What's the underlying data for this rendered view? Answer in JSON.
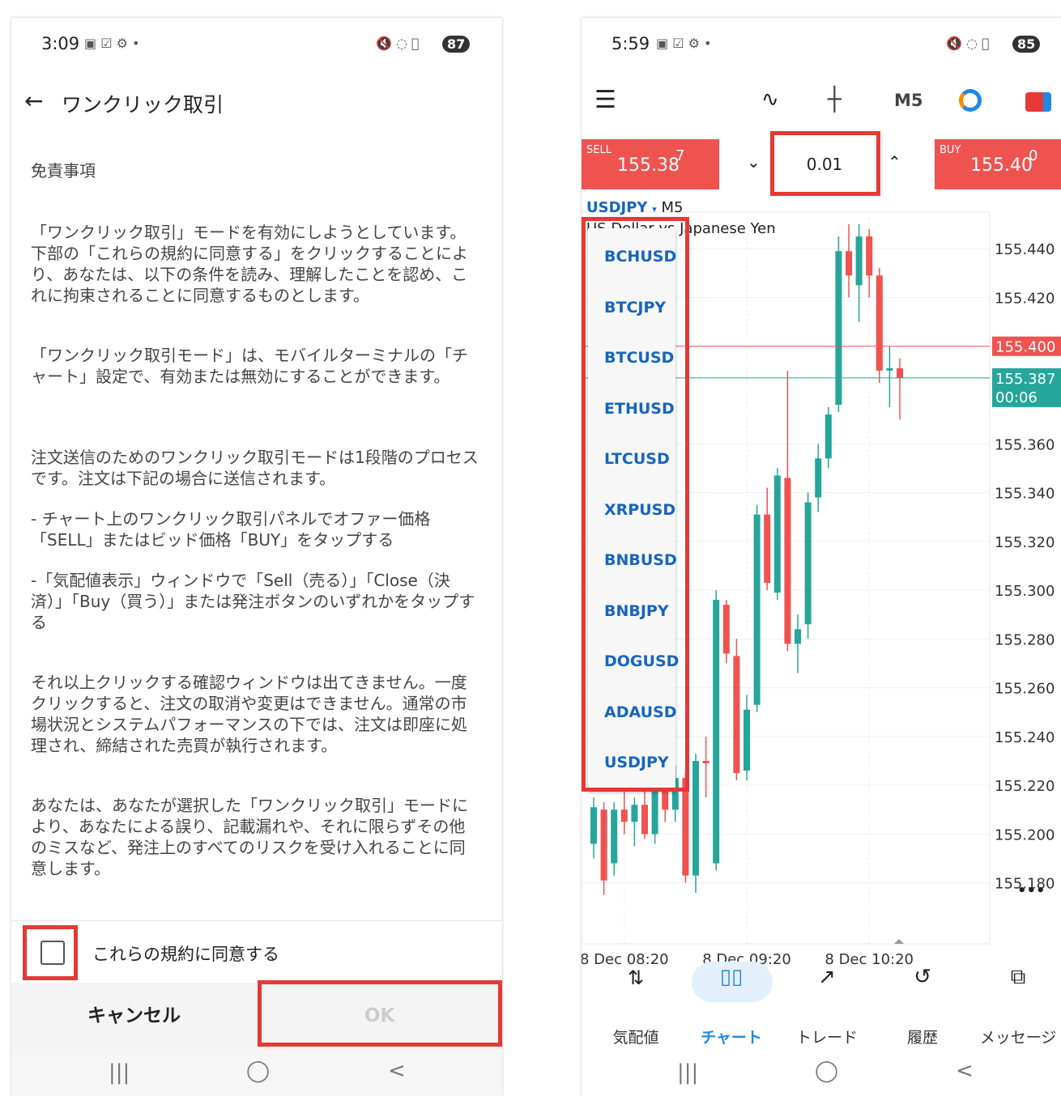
{
  "left_screen": {
    "status": {
      "time": "3:09",
      "battery": "87"
    },
    "header": {
      "title": "ワンクリック取引"
    },
    "section_title": "免責事項",
    "paragraphs": [
      "「ワンクリック取引」モードを有効にしようとしています。下部の「これらの規約に同意する」をクリックすることにより、あなたは、以下の条件を読み、理解したことを認め、これに拘束されることに同意するものとします。",
      "「ワンクリック取引モード」は、モバイルターミナルの「チャート」設定で、有効または無効にすることができます。",
      "注文送信のためのワンクリック取引モードは1段階のプロセスです。注文は下記の場合に送信されます。",
      "- チャート上のワンクリック取引パネルでオファー価格「SELL」またはビッド価格「BUY」をタップする",
      "-「気配値表示」ウィンドウで「Sell（売る）」「Close（決済）」「Buy（買う）」または発注ボタンのいずれかをタップする",
      "それ以上クリックする確認ウィンドウは出てきません。一度クリックすると、注文の取消や変更はできません。通常の市場状況とシステムパフォーマンスの下では、注文は即座に処理され、締結された売買が執行されます。",
      "あなたは、あなたが選択した「ワンクリック取引」モードにより、あなたによる誤り、記載漏れや、それに限らずその他のミスなど、発注上のすべてのリスクを受け入れることに同意します。"
    ],
    "checkbox_label": "これらの規約に同意する",
    "buttons": {
      "cancel": "キャンセル",
      "ok": "OK"
    }
  },
  "right_screen": {
    "status": {
      "time": "5:59",
      "battery": "85"
    },
    "toolbar": {
      "timeframe": "M5"
    },
    "trade_panel": {
      "sell_label": "SELL",
      "sell_price": "155.38",
      "sell_price_last": "7",
      "lot": "0.01",
      "buy_label": "BUY",
      "buy_price": "155.40",
      "buy_price_last": "0"
    },
    "symbol": "USDJPY",
    "timeframe": "M5",
    "description": "US Dollar vs Japanese Yen",
    "symbol_list": [
      "BCHUSD",
      "BTCJPY",
      "BTCUSD",
      "ETHUSD",
      "LTCUSD",
      "XRPUSD",
      "BNBUSD",
      "BNBJPY",
      "DOGUSD",
      "ADAUSD",
      "USDJPY"
    ],
    "chart": {
      "type": "candlestick",
      "ylim": [
        155.155,
        155.455
      ],
      "yticks": [
        {
          "value": 155.44,
          "label": "155.440"
        },
        {
          "value": 155.42,
          "label": "155.420"
        },
        {
          "value": 155.36,
          "label": "155.360"
        },
        {
          "value": 155.34,
          "label": "155.340"
        },
        {
          "value": 155.32,
          "label": "155.320"
        },
        {
          "value": 155.3,
          "label": "155.300"
        },
        {
          "value": 155.28,
          "label": "155.280"
        },
        {
          "value": 155.26,
          "label": "155.260"
        },
        {
          "value": 155.24,
          "label": "155.240"
        },
        {
          "value": 155.22,
          "label": "155.220"
        },
        {
          "value": 155.2,
          "label": "155.200"
        },
        {
          "value": 155.18,
          "label": "155.180"
        }
      ],
      "xticks": [
        {
          "index": 3,
          "label": "8 Dec 08:20"
        },
        {
          "index": 15,
          "label": "8 Dec 09:20"
        },
        {
          "index": 27,
          "label": "8 Dec 10:20"
        }
      ],
      "up_color": "#26a69a",
      "down_color": "#ef5350",
      "ask_line": {
        "value": 155.4,
        "label": "155.400"
      },
      "bid_line": {
        "value": 155.387,
        "label": "155.387",
        "timer": "00:06"
      },
      "candles": [
        {
          "o": 155.196,
          "h": 155.215,
          "l": 155.19,
          "c": 155.211
        },
        {
          "o": 155.21,
          "h": 155.213,
          "l": 155.175,
          "c": 155.181
        },
        {
          "o": 155.188,
          "h": 155.213,
          "l": 155.183,
          "c": 155.21
        },
        {
          "o": 155.21,
          "h": 155.222,
          "l": 155.2,
          "c": 155.205
        },
        {
          "o": 155.205,
          "h": 155.215,
          "l": 155.195,
          "c": 155.212
        },
        {
          "o": 155.212,
          "h": 155.218,
          "l": 155.198,
          "c": 155.2
        },
        {
          "o": 155.2,
          "h": 155.225,
          "l": 155.196,
          "c": 155.22
        },
        {
          "o": 155.22,
          "h": 155.226,
          "l": 155.205,
          "c": 155.21
        },
        {
          "o": 155.21,
          "h": 155.228,
          "l": 155.205,
          "c": 155.223
        },
        {
          "o": 155.223,
          "h": 155.225,
          "l": 155.18,
          "c": 155.183
        },
        {
          "o": 155.183,
          "h": 155.233,
          "l": 155.176,
          "c": 155.23
        },
        {
          "o": 155.23,
          "h": 155.24,
          "l": 155.215,
          "c": 155.229
        },
        {
          "o": 155.188,
          "h": 155.3,
          "l": 155.185,
          "c": 155.296
        },
        {
          "o": 155.294,
          "h": 155.296,
          "l": 155.27,
          "c": 155.274
        },
        {
          "o": 155.273,
          "h": 155.28,
          "l": 155.222,
          "c": 155.225
        },
        {
          "o": 155.226,
          "h": 155.257,
          "l": 155.222,
          "c": 155.251
        },
        {
          "o": 155.253,
          "h": 155.335,
          "l": 155.25,
          "c": 155.331
        },
        {
          "o": 155.331,
          "h": 155.342,
          "l": 155.3,
          "c": 155.303
        },
        {
          "o": 155.299,
          "h": 155.35,
          "l": 155.296,
          "c": 155.347
        },
        {
          "o": 155.346,
          "h": 155.39,
          "l": 155.275,
          "c": 155.278
        },
        {
          "o": 155.278,
          "h": 155.29,
          "l": 155.266,
          "c": 155.284
        },
        {
          "o": 155.286,
          "h": 155.34,
          "l": 155.28,
          "c": 155.336
        },
        {
          "o": 155.338,
          "h": 155.36,
          "l": 155.332,
          "c": 155.354
        },
        {
          "o": 155.354,
          "h": 155.375,
          "l": 155.35,
          "c": 155.372
        },
        {
          "o": 155.376,
          "h": 155.445,
          "l": 155.373,
          "c": 155.439
        },
        {
          "o": 155.439,
          "h": 155.45,
          "l": 155.42,
          "c": 155.429
        },
        {
          "o": 155.425,
          "h": 155.45,
          "l": 155.41,
          "c": 155.445
        },
        {
          "o": 155.445,
          "h": 155.448,
          "l": 155.42,
          "c": 155.429
        },
        {
          "o": 155.429,
          "h": 155.432,
          "l": 155.385,
          "c": 155.39
        },
        {
          "o": 155.39,
          "h": 155.4,
          "l": 155.375,
          "c": 155.391
        },
        {
          "o": 155.391,
          "h": 155.395,
          "l": 155.37,
          "c": 155.387
        }
      ]
    },
    "more": "•••",
    "nav": [
      "気配値",
      "チャート",
      "トレード",
      "履歴",
      "メッセージ"
    ]
  }
}
